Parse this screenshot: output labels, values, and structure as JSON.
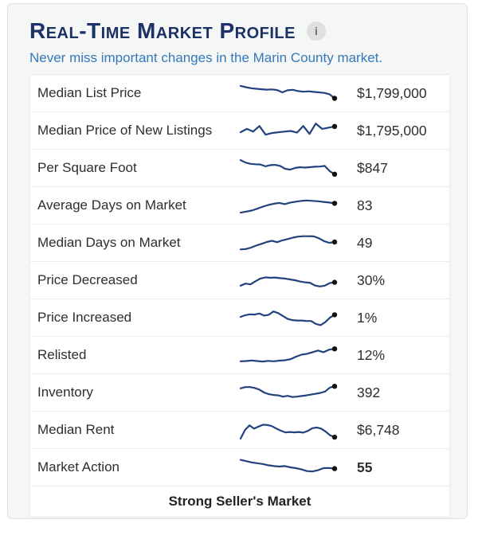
{
  "header": {
    "title": "Real-Time Market Profile",
    "info_icon": "i",
    "subtitle": "Never miss important changes in the Marin County market."
  },
  "colors": {
    "title": "#1c3166",
    "subtitle": "#3579b8",
    "sparkline": "#21427c",
    "end_dot": "#111111",
    "card_background": "#f5f6f6"
  },
  "table": {
    "rows": [
      {
        "label": "Median List Price",
        "value": "$1,799,000",
        "bold": false,
        "spark": [
          15,
          21,
          26,
          29,
          31,
          33,
          32,
          35,
          46,
          36,
          34,
          40,
          43,
          41,
          44,
          46,
          49,
          55,
          75
        ]
      },
      {
        "label": "Median Price of New Listings",
        "value": "$1,795,000",
        "bold": false,
        "spark": [
          58,
          42,
          55,
          28,
          70,
          62,
          58,
          55,
          52,
          60,
          28,
          66,
          16,
          42,
          36,
          30
        ]
      },
      {
        "label": "Per Square Foot",
        "value": "$847",
        "bold": false,
        "spark": [
          12,
          24,
          30,
          32,
          33,
          42,
          36,
          35,
          40,
          54,
          58,
          50,
          46,
          48,
          46,
          44,
          43,
          40,
          65,
          80
        ]
      },
      {
        "label": "Average Days on Market",
        "value": "83",
        "bold": false,
        "spark": [
          85,
          80,
          75,
          66,
          56,
          48,
          42,
          38,
          44,
          36,
          32,
          28,
          26,
          28,
          30,
          33,
          36,
          40
        ]
      },
      {
        "label": "Median Days on Market",
        "value": "49",
        "bold": false,
        "spark": [
          82,
          80,
          73,
          63,
          55,
          46,
          40,
          47,
          38,
          32,
          25,
          20,
          18,
          18,
          19,
          28,
          42,
          50,
          46
        ]
      },
      {
        "label": "Price Decreased",
        "value": "30%",
        "bold": false,
        "spark": [
          76,
          66,
          70,
          55,
          42,
          36,
          38,
          37,
          40,
          42,
          46,
          50,
          56,
          60,
          62,
          75,
          80,
          76,
          64,
          60
        ]
      },
      {
        "label": "Price Increased",
        "value": "1%",
        "bold": false,
        "spark": [
          46,
          38,
          34,
          35,
          30,
          40,
          36,
          20,
          28,
          42,
          56,
          62,
          64,
          64,
          66,
          66,
          80,
          86,
          72,
          50,
          36
        ]
      },
      {
        "label": "Relisted",
        "value": "12%",
        "bold": false,
        "spark": [
          80,
          79,
          76,
          79,
          81,
          78,
          80,
          77,
          75,
          70,
          58,
          48,
          44,
          36,
          28,
          36,
          24,
          20
        ]
      },
      {
        "label": "Inventory",
        "value": "392",
        "bold": false,
        "spark": [
          30,
          24,
          24,
          28,
          36,
          50,
          58,
          62,
          64,
          70,
          66,
          72,
          70,
          67,
          64,
          60,
          56,
          52,
          45,
          26,
          20
        ]
      },
      {
        "label": "Median Rent",
        "value": "$6,748",
        "bold": false,
        "spark": [
          92,
          50,
          28,
          44,
          34,
          25,
          26,
          32,
          44,
          54,
          62,
          60,
          62,
          60,
          63,
          55,
          42,
          38,
          44,
          58,
          76,
          85
        ]
      },
      {
        "label": "Market Action",
        "value": "55",
        "bold": true,
        "spark": [
          14,
          20,
          26,
          30,
          34,
          40,
          44,
          46,
          44,
          50,
          54,
          60,
          68,
          70,
          64,
          54,
          53,
          56
        ]
      }
    ],
    "footer": "Strong Seller's Market"
  }
}
